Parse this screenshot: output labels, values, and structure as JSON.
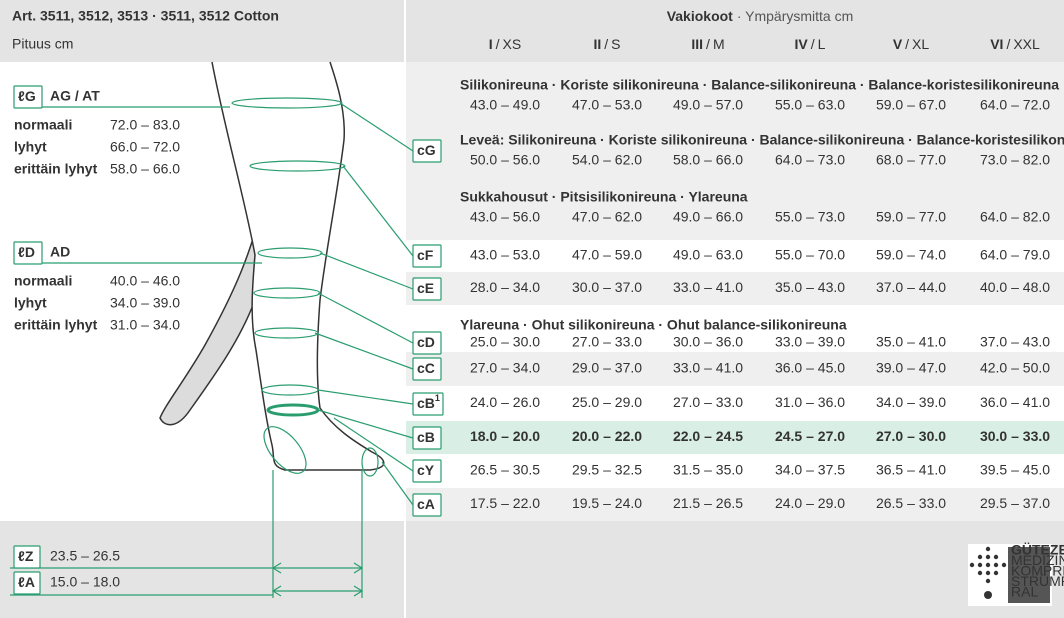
{
  "header": {
    "title": "Art. 3511, 3512, 3513 · 3511, 3512 Cotton",
    "subtitle": "Pituus cm",
    "sizes_title": "Vakiokoot",
    "sizes_subtitle": "· Ympärysmitta cm",
    "size_separator": "/",
    "sizes": [
      {
        "roman": "I",
        "name": "XS"
      },
      {
        "roman": "II",
        "name": "S"
      },
      {
        "roman": "III",
        "name": "M"
      },
      {
        "roman": "IV",
        "name": "L"
      },
      {
        "roman": "V",
        "name": "XL"
      },
      {
        "roman": "VI",
        "name": "XXL"
      }
    ]
  },
  "lengths": {
    "groups": [
      {
        "code": "ℓG",
        "name": "AG / AT",
        "rows": [
          {
            "label": "normaali",
            "value": "72.0 – 83.0"
          },
          {
            "label": "lyhyt",
            "value": "66.0 – 72.0"
          },
          {
            "label": "erittäin lyhyt",
            "value": "58.0 – 66.0"
          }
        ]
      },
      {
        "code": "ℓD",
        "name": "AD",
        "rows": [
          {
            "label": "normaali",
            "value": "40.0 – 46.0"
          },
          {
            "label": "lyhyt",
            "value": "34.0 – 39.0"
          },
          {
            "label": "erittäin lyhyt",
            "value": "31.0 – 34.0"
          }
        ]
      }
    ],
    "single": [
      {
        "code": "ℓZ",
        "value": "23.5 – 26.5"
      },
      {
        "code": "ℓA",
        "value": "15.0 – 18.0"
      }
    ]
  },
  "table": {
    "rows": [
      {
        "code": "cG",
        "subrows": [
          {
            "note": "Silikonireuna · Koriste silikonireuna · Balance-silikonireuna · Balance-koristesilikonireuna",
            "values": [
              "43.0 – 49.0",
              "47.0 – 53.0",
              "49.0 – 57.0",
              "55.0 – 63.0",
              "59.0 – 67.0",
              "64.0 – 72.0"
            ]
          },
          {
            "note": "Leveä: Silikonireuna · Koriste silikonireuna · Balance-silikonireuna · Balance-koristesilikonireuna",
            "values": [
              "50.0 – 56.0",
              "54.0 – 62.0",
              "58.0 – 66.0",
              "64.0 – 73.0",
              "68.0 – 77.0",
              "73.0 – 82.0"
            ]
          },
          {
            "note": "Sukkahousut · Pitsisilikonireuna · Ylareuna",
            "values": [
              "43.0 – 56.0",
              "47.0 – 62.0",
              "49.0 – 66.0",
              "55.0 – 73.0",
              "59.0 – 77.0",
              "64.0 – 82.0"
            ]
          }
        ]
      },
      {
        "code": "cF",
        "values": [
          "43.0 – 53.0",
          "47.0 – 59.0",
          "49.0 – 63.0",
          "55.0 – 70.0",
          "59.0 – 74.0",
          "64.0 – 79.0"
        ]
      },
      {
        "code": "cE",
        "values": [
          "28.0 – 34.0",
          "30.0 – 37.0",
          "33.0 – 41.0",
          "35.0 – 43.0",
          "37.0 – 44.0",
          "40.0 – 48.0"
        ]
      },
      {
        "code": "cD",
        "subrows": [
          {
            "note": "Ylareuna · Ohut silikonireuna · Ohut balance-silikonireuna",
            "values": [
              "25.0 – 30.0",
              "27.0 – 33.0",
              "30.0 – 36.0",
              "33.0 – 39.0",
              "35.0 – 41.0",
              "37.0 – 43.0"
            ]
          }
        ]
      },
      {
        "code": "cC",
        "values": [
          "27.0 – 34.0",
          "29.0 – 37.0",
          "33.0 – 41.0",
          "36.0 – 45.0",
          "39.0 – 47.0",
          "42.0 – 50.0"
        ]
      },
      {
        "code": "cB",
        "sup": "1",
        "values": [
          "24.0 – 26.0",
          "25.0 – 29.0",
          "27.0 – 33.0",
          "31.0 – 36.0",
          "34.0 – 39.0",
          "36.0 – 41.0"
        ]
      },
      {
        "code": "cB",
        "highlight": true,
        "values": [
          "18.0 – 20.0",
          "20.0 – 22.0",
          "22.0 – 24.5",
          "24.5 – 27.0",
          "27.0 – 30.0",
          "30.0 – 33.0"
        ]
      },
      {
        "code": "cY",
        "values": [
          "26.5 – 30.5",
          "29.5 – 32.5",
          "31.5 – 35.0",
          "34.0 – 37.5",
          "36.5 – 41.0",
          "39.5 – 45.0"
        ]
      },
      {
        "code": "cA",
        "values": [
          "17.5 – 22.0",
          "19.5 – 24.0",
          "21.5 – 26.5",
          "24.0 – 29.0",
          "26.5 – 33.0",
          "29.5 – 37.0"
        ]
      }
    ]
  },
  "footer": {
    "logo": [
      "GÜTEZEICHEN",
      "MEDIZINISCHE",
      "KOMPRESSIONS-",
      "STRÜMPFE",
      "RAL"
    ]
  }
}
